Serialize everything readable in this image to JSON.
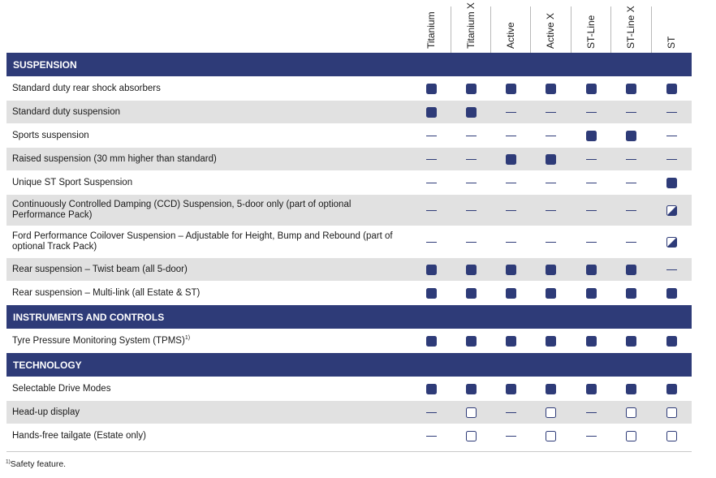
{
  "columns": [
    "Titanium",
    "Titanium X",
    "Active",
    "Active X",
    "ST-Line",
    "ST-Line X",
    "ST"
  ],
  "sections": [
    {
      "title": "SUSPENSION",
      "rows": [
        {
          "label": "Standard duty rear shock absorbers",
          "values": [
            "standard",
            "standard",
            "standard",
            "standard",
            "standard",
            "standard",
            "standard"
          ]
        },
        {
          "label": "Standard duty suspension",
          "values": [
            "standard",
            "standard",
            "none",
            "none",
            "none",
            "none",
            "none"
          ]
        },
        {
          "label": "Sports suspension",
          "values": [
            "none",
            "none",
            "none",
            "none",
            "standard",
            "standard",
            "none"
          ]
        },
        {
          "label": "Raised suspension (30 mm higher than standard)",
          "values": [
            "none",
            "none",
            "standard",
            "standard",
            "none",
            "none",
            "none"
          ]
        },
        {
          "label": "Unique ST Sport Suspension",
          "values": [
            "none",
            "none",
            "none",
            "none",
            "none",
            "none",
            "standard"
          ]
        },
        {
          "label": "Continuously Controlled Damping (CCD) Suspension, 5-door only (part of optional Performance Pack)",
          "values": [
            "none",
            "none",
            "none",
            "none",
            "none",
            "none",
            "pack"
          ]
        },
        {
          "label": "Ford Performance Coilover Suspension – Adjustable for Height, Bump and Rebound (part of optional Track Pack)",
          "values": [
            "none",
            "none",
            "none",
            "none",
            "none",
            "none",
            "pack"
          ]
        },
        {
          "label": "Rear suspension – Twist beam (all 5-door)",
          "values": [
            "standard",
            "standard",
            "standard",
            "standard",
            "standard",
            "standard",
            "none"
          ]
        },
        {
          "label": "Rear suspension – Multi-link (all Estate & ST)",
          "values": [
            "standard",
            "standard",
            "standard",
            "standard",
            "standard",
            "standard",
            "standard"
          ]
        }
      ]
    },
    {
      "title": "INSTRUMENTS AND CONTROLS",
      "rows": [
        {
          "label": "Tyre Pressure Monitoring System (TPMS)",
          "footnote_ref": "1)",
          "values": [
            "standard",
            "standard",
            "standard",
            "standard",
            "standard",
            "standard",
            "standard"
          ]
        }
      ]
    },
    {
      "title": "TECHNOLOGY",
      "rows": [
        {
          "label": "Selectable Drive Modes",
          "values": [
            "standard",
            "standard",
            "standard",
            "standard",
            "standard",
            "standard",
            "standard"
          ]
        },
        {
          "label": "Head-up display",
          "values": [
            "none",
            "option",
            "none",
            "option",
            "none",
            "option",
            "option"
          ]
        },
        {
          "label": "Hands-free tailgate (Estate only)",
          "values": [
            "none",
            "option",
            "none",
            "option",
            "none",
            "option",
            "option"
          ]
        }
      ]
    }
  ],
  "footnote": {
    "marker": "1)",
    "text": "Safety feature."
  },
  "colors": {
    "navy": "#2e3b78",
    "row_shade": "#e1e1e1",
    "header_text": "#ffffff"
  }
}
